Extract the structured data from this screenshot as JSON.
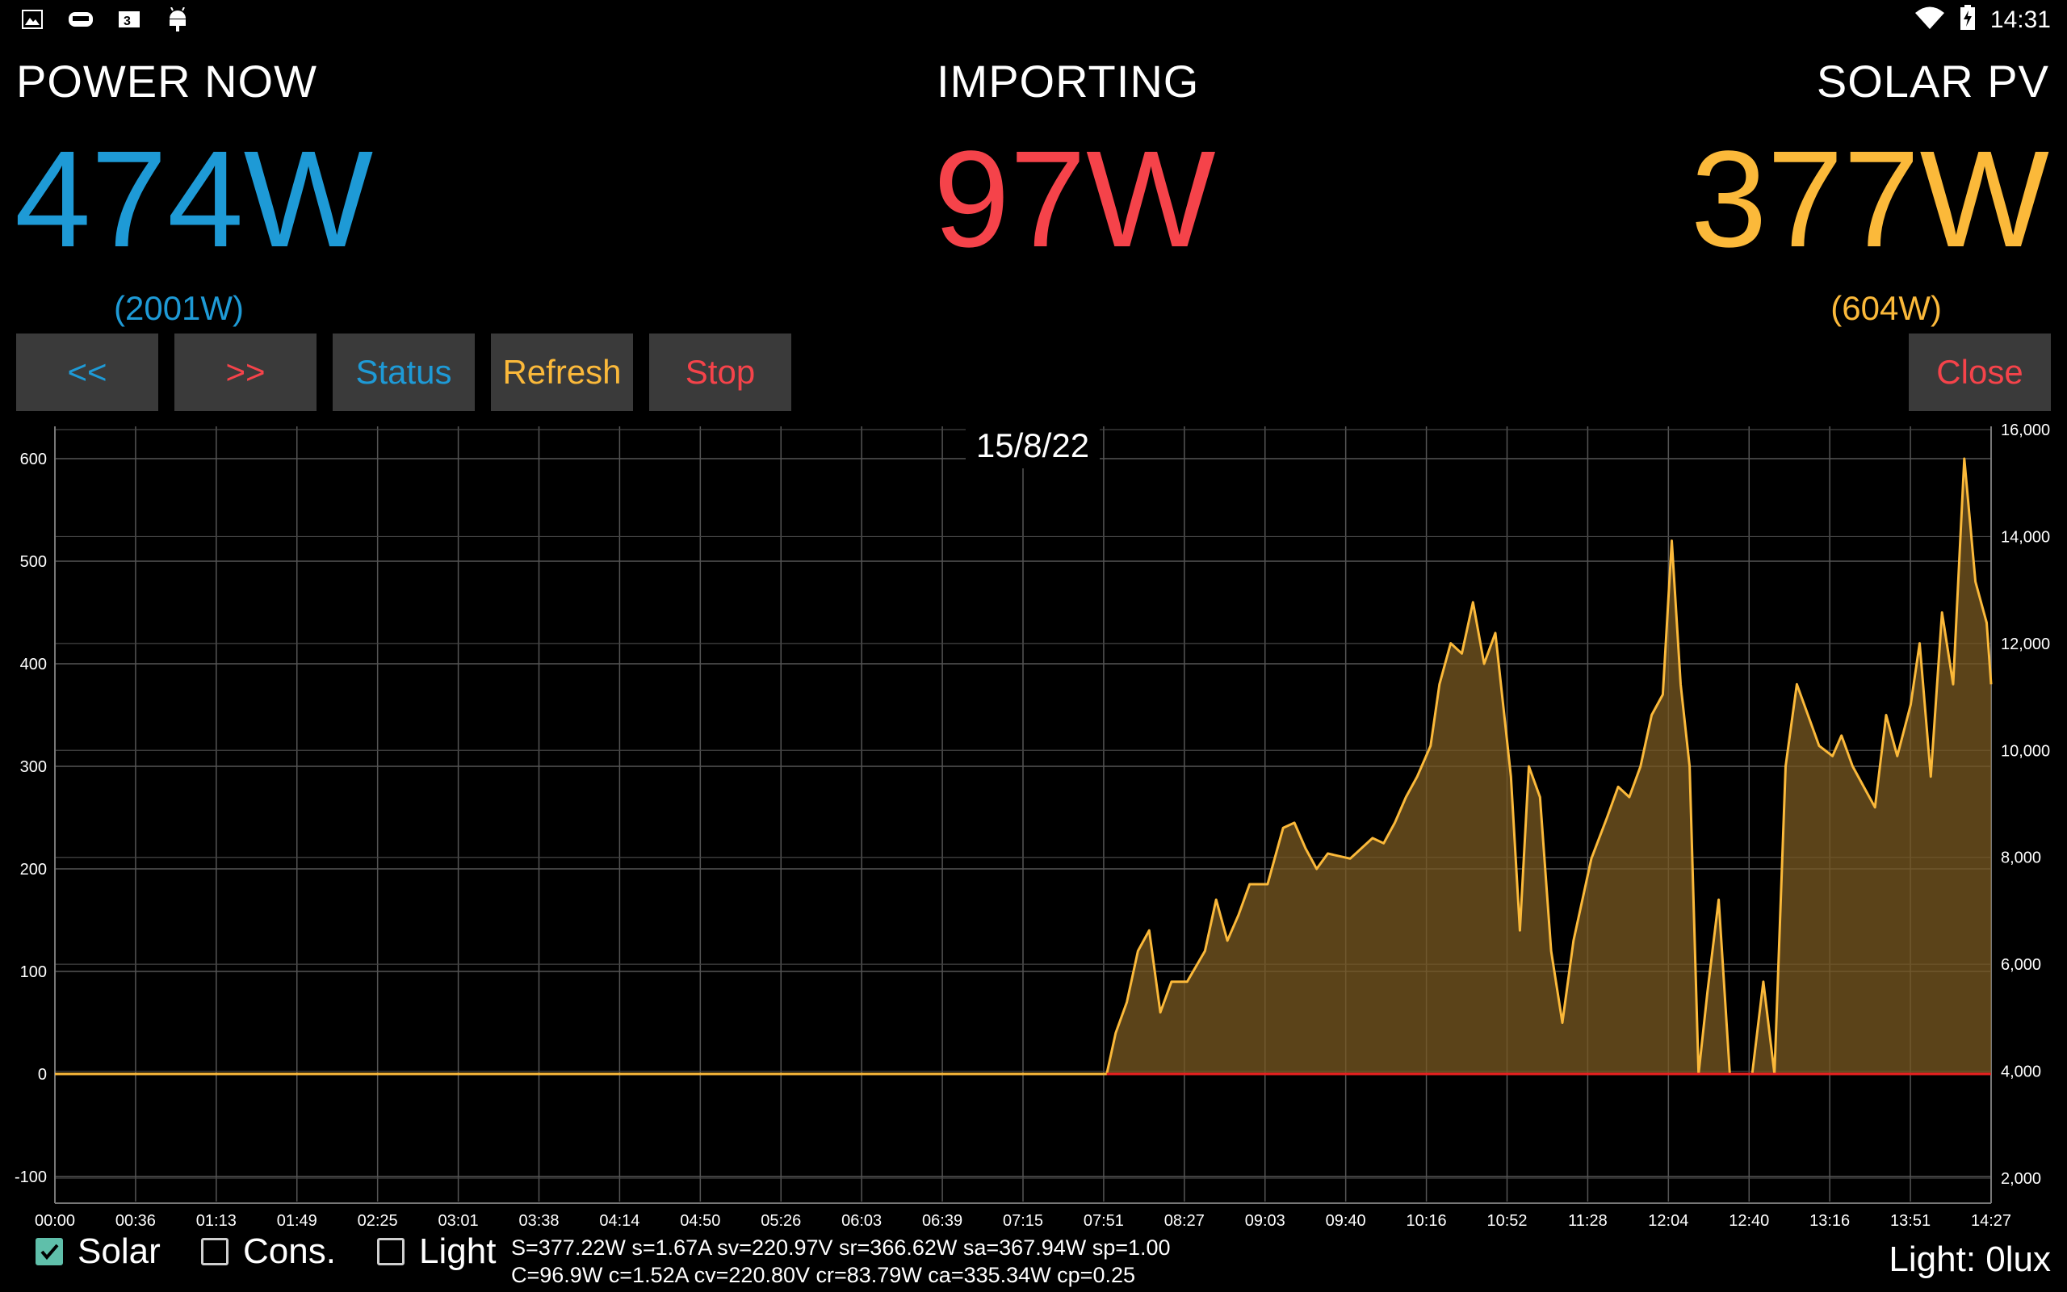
{
  "statusbar": {
    "time": "14:31"
  },
  "header": {
    "power_now": {
      "label": "POWER NOW",
      "value": "474W",
      "peak": "(2001W)"
    },
    "grid": {
      "label": "IMPORTING",
      "value": "97W"
    },
    "solar": {
      "label": "SOLAR PV",
      "value": "377W",
      "peak": "(604W)"
    }
  },
  "buttons": {
    "prev": "<<",
    "next": ">>",
    "status": "Status",
    "refresh": "Refresh",
    "stop": "Stop",
    "close": "Close"
  },
  "colors": {
    "blue": "#1e9ad6",
    "red": "#f5434a",
    "orange": "#fbb93a",
    "button_bg": "#3a3a3a"
  },
  "chart_data": {
    "type": "area",
    "title": "15/8/22",
    "x_ticks": [
      "00:00",
      "00:36",
      "01:13",
      "01:49",
      "02:25",
      "03:01",
      "03:38",
      "04:14",
      "04:50",
      "05:26",
      "06:03",
      "06:39",
      "07:15",
      "07:51",
      "08:27",
      "09:03",
      "09:40",
      "10:16",
      "10:52",
      "11:28",
      "12:04",
      "12:40",
      "13:16",
      "13:51",
      "14:27"
    ],
    "y_left": {
      "ticks": [
        "600",
        "500",
        "400",
        "300",
        "200",
        "100",
        "0",
        "-100"
      ],
      "range": [
        -100,
        600
      ]
    },
    "y_right": {
      "ticks": [
        "16,000",
        "14,000",
        "12,000",
        "10,000",
        "8,000",
        "6,000",
        "4,000",
        "2,000"
      ],
      "range": [
        2000,
        16000
      ]
    },
    "grid": true,
    "series": [
      {
        "color": "#fbb93a",
        "x": [
          "00:00",
          "07:51",
          "07:55",
          "08:00",
          "08:05",
          "08:10",
          "08:15",
          "08:20",
          "08:27",
          "08:35",
          "08:40",
          "08:45",
          "08:50",
          "08:55",
          "09:03",
          "09:10",
          "09:15",
          "09:20",
          "09:25",
          "09:30",
          "09:40",
          "09:50",
          "09:55",
          "10:00",
          "10:05",
          "10:10",
          "10:16",
          "10:20",
          "10:25",
          "10:30",
          "10:35",
          "10:40",
          "10:45",
          "10:52",
          "10:56",
          "11:00",
          "11:05",
          "11:10",
          "11:15",
          "11:20",
          "11:28",
          "11:35",
          "11:40",
          "11:45",
          "11:50",
          "11:55",
          "12:00",
          "12:04",
          "12:08",
          "12:12",
          "12:16",
          "12:20",
          "12:25",
          "12:30",
          "12:35",
          "12:40",
          "12:45",
          "12:50",
          "12:55",
          "13:00",
          "13:05",
          "13:10",
          "13:16",
          "13:20",
          "13:25",
          "13:30",
          "13:35",
          "13:40",
          "13:45",
          "13:51",
          "13:55",
          "14:00",
          "14:05",
          "14:10",
          "14:15",
          "14:20",
          "14:25",
          "14:27"
        ],
        "values": [
          0,
          0,
          40,
          70,
          120,
          140,
          60,
          90,
          90,
          120,
          170,
          130,
          155,
          185,
          185,
          240,
          245,
          220,
          200,
          215,
          210,
          230,
          225,
          245,
          270,
          290,
          320,
          380,
          420,
          410,
          460,
          400,
          430,
          290,
          140,
          300,
          270,
          120,
          50,
          130,
          210,
          250,
          280,
          270,
          300,
          350,
          370,
          520,
          380,
          300,
          0,
          80,
          170,
          0,
          0,
          0,
          90,
          0,
          300,
          380,
          350,
          320,
          310,
          330,
          300,
          280,
          260,
          350,
          310,
          360,
          420,
          290,
          450,
          380,
          600,
          480,
          440,
          380
        ]
      },
      {
        "color": "#e82020",
        "x": [
          "07:51",
          "14:27"
        ],
        "values": [
          0,
          0
        ]
      }
    ]
  },
  "legend": {
    "solar": "Solar",
    "cons": "Cons.",
    "light": "Light"
  },
  "stats": {
    "line1": "S=377.22W s=1.67A sv=220.97V sr=366.62W sa=367.94W sp=1.00",
    "line2": "C=96.9W c=1.52A cv=220.80V cr=83.79W ca=335.34W cp=0.25"
  },
  "light_reading": "Light:  0lux"
}
